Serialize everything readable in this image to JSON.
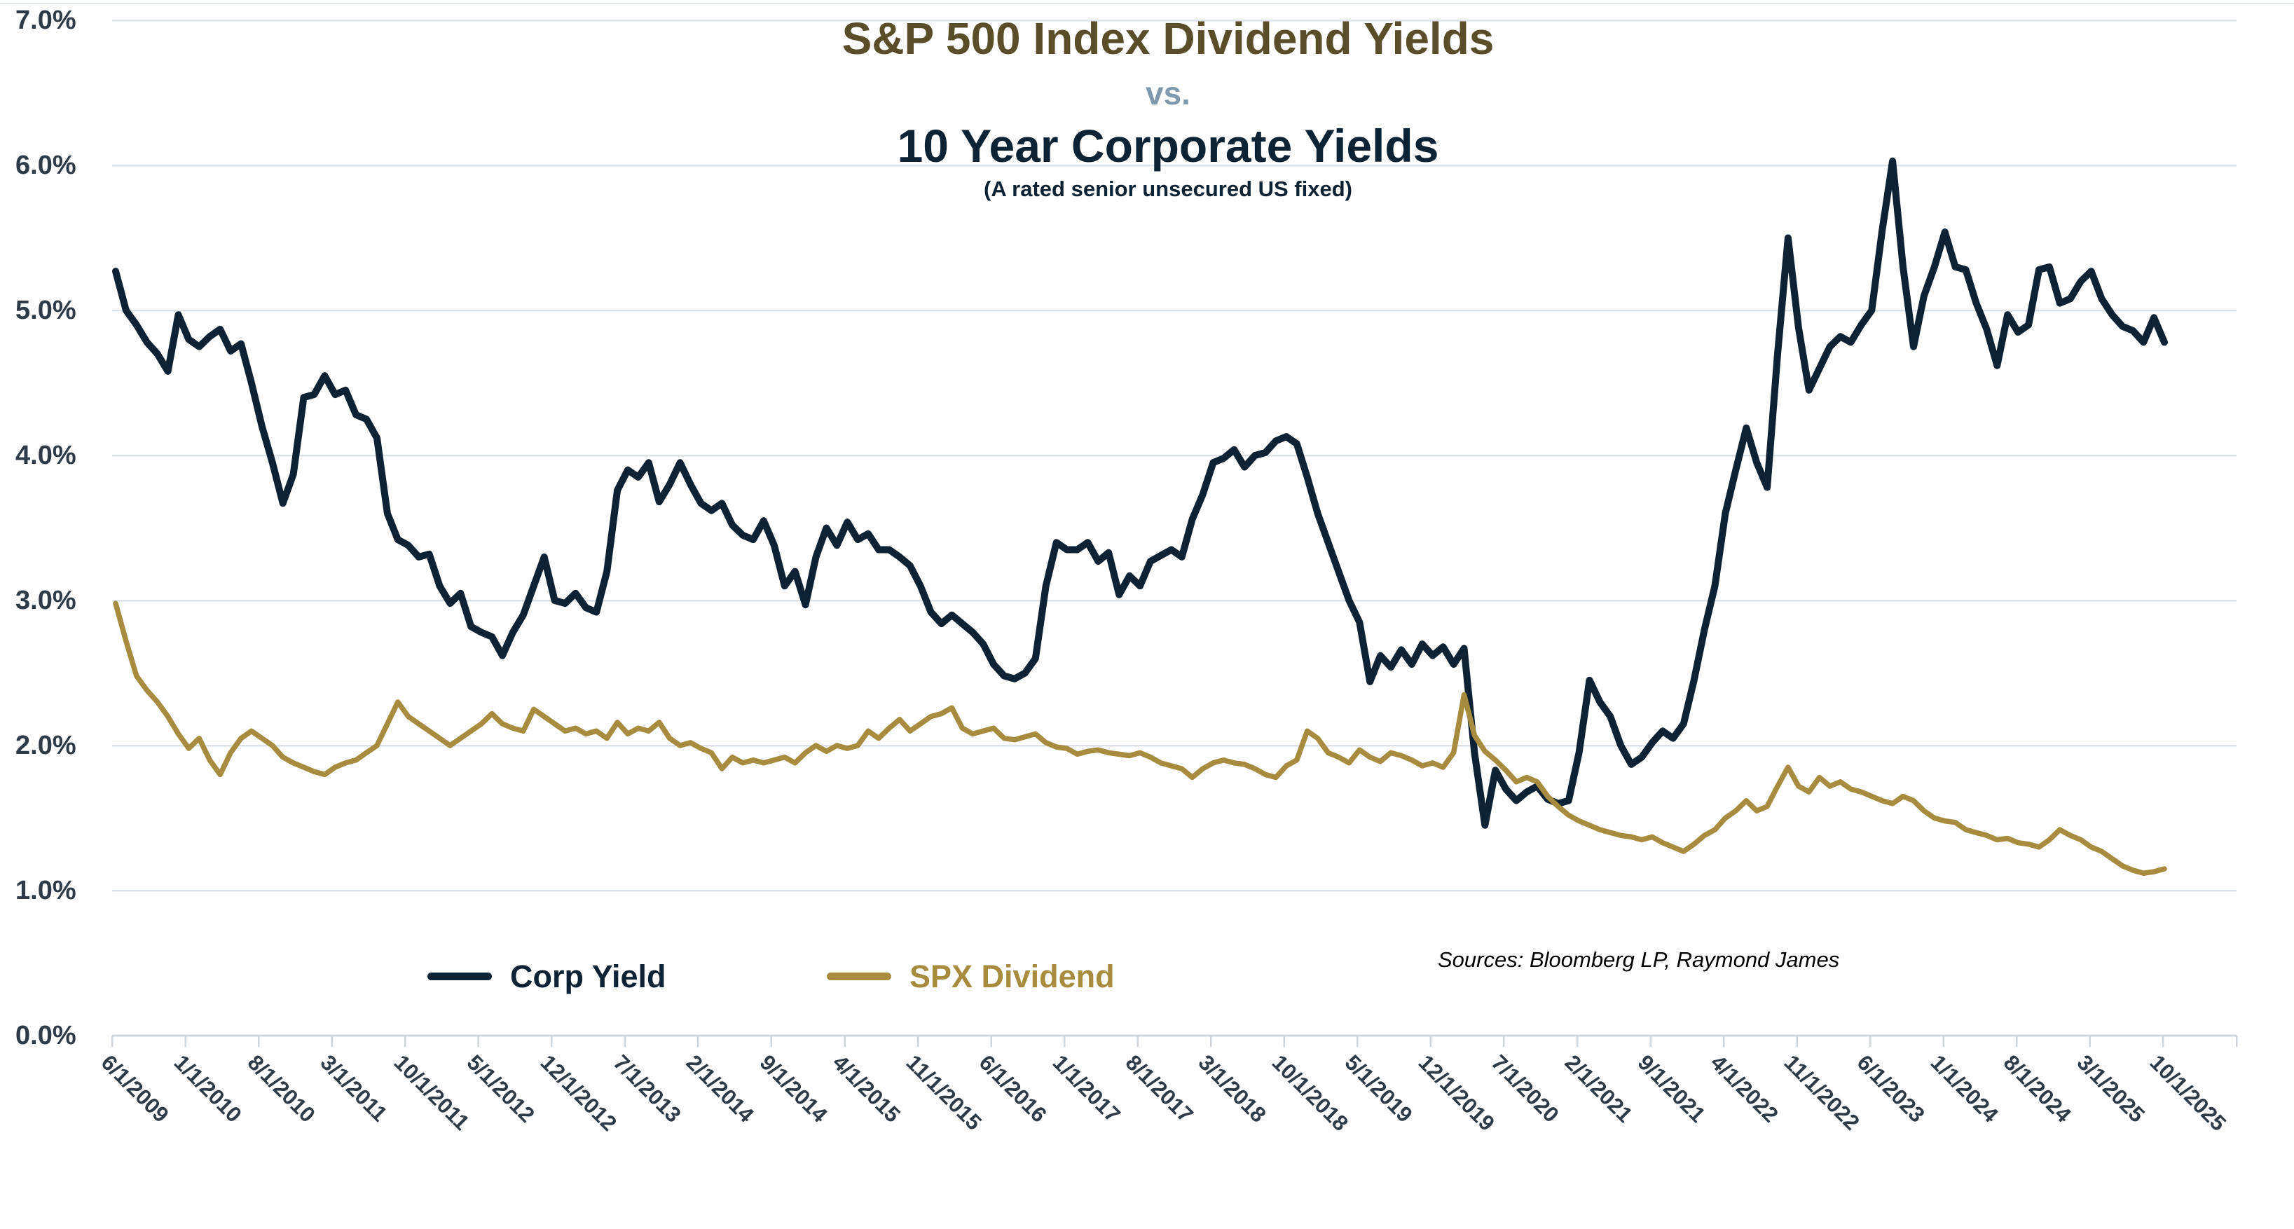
{
  "title": {
    "line1": "S&P 500 Index Dividend Yields",
    "vs": "vs.",
    "line2": "10 Year Corporate Yields",
    "subtitle": "(A rated senior unsecured US fixed)"
  },
  "source_note": "Sources: Bloomberg LP, Raymond James",
  "colors": {
    "title_line1": "#5a4e2a",
    "vs_label": "#7e99ad",
    "title_line2": "#0c2336",
    "corp_yield": "#0e2235",
    "spx_dividend": "#a78c3f",
    "axis_text": "#2e3b47",
    "gridline": "#dde3e9",
    "axis_line": "#cfd7dd"
  },
  "legend": [
    {
      "label": "Corp Yield",
      "color": "#0e2235"
    },
    {
      "label": "SPX Dividend",
      "color": "#a78c3f"
    }
  ],
  "chart_data": {
    "type": "line",
    "title": "S&P 500 Index Dividend Yields vs. 10 Year Corporate Yields (A rated senior unsecured US fixed)",
    "xlabel": "",
    "ylabel": "",
    "ylim": [
      0,
      7
    ],
    "y_tick_labels": [
      "0.0%",
      "1.0%",
      "2.0%",
      "3.0%",
      "4.0%",
      "5.0%",
      "6.0%",
      "7.0%"
    ],
    "grid": "horizontal",
    "legend_position": "bottom",
    "frequency": "monthly",
    "x_start": "6/1/2009",
    "x_end": "10/1/2025",
    "x_tick_labels": [
      "6/1/2009",
      "1/1/2010",
      "8/1/2010",
      "3/1/2011",
      "10/1/2011",
      "5/1/2012",
      "12/1/2012",
      "7/1/2013",
      "2/1/2014",
      "9/1/2014",
      "4/1/2015",
      "11/1/2015",
      "6/1/2016",
      "1/1/2017",
      "8/1/2017",
      "3/1/2018",
      "10/1/2018",
      "5/1/2019",
      "12/1/2019",
      "7/1/2020",
      "2/1/2021",
      "9/1/2021",
      "4/1/2022",
      "11/1/2022",
      "6/1/2023",
      "1/1/2024",
      "8/1/2024",
      "3/1/2025",
      "10/1/2025"
    ],
    "x_tick_interval_months": 7,
    "series": [
      {
        "name": "Corp Yield",
        "color": "#0e2235",
        "unit": "%",
        "values": [
          5.27,
          5.0,
          4.9,
          4.78,
          4.7,
          4.58,
          4.97,
          4.8,
          4.75,
          4.82,
          4.87,
          4.72,
          4.77,
          4.5,
          4.2,
          3.95,
          3.67,
          3.87,
          4.4,
          4.42,
          4.55,
          4.42,
          4.45,
          4.28,
          4.25,
          4.12,
          3.6,
          3.42,
          3.38,
          3.3,
          3.32,
          3.1,
          2.98,
          3.05,
          2.82,
          2.78,
          2.75,
          2.62,
          2.78,
          2.9,
          3.1,
          3.3,
          3.0,
          2.98,
          3.05,
          2.95,
          2.92,
          3.2,
          3.76,
          3.9,
          3.85,
          3.95,
          3.68,
          3.8,
          3.95,
          3.8,
          3.67,
          3.62,
          3.67,
          3.52,
          3.45,
          3.42,
          3.55,
          3.38,
          3.1,
          3.2,
          2.97,
          3.3,
          3.5,
          3.38,
          3.54,
          3.42,
          3.46,
          3.35,
          3.35,
          3.3,
          3.24,
          3.1,
          2.92,
          2.84,
          2.9,
          2.84,
          2.78,
          2.7,
          2.56,
          2.48,
          2.46,
          2.5,
          2.6,
          3.1,
          3.4,
          3.35,
          3.35,
          3.4,
          3.27,
          3.33,
          3.04,
          3.17,
          3.1,
          3.27,
          3.31,
          3.35,
          3.3,
          3.56,
          3.73,
          3.95,
          3.98,
          4.04,
          3.92,
          4.0,
          4.02,
          4.1,
          4.13,
          4.08,
          3.85,
          3.6,
          3.4,
          3.2,
          3.0,
          2.85,
          2.44,
          2.62,
          2.54,
          2.66,
          2.56,
          2.7,
          2.62,
          2.68,
          2.56,
          2.67,
          1.95,
          1.45,
          1.83,
          1.7,
          1.62,
          1.68,
          1.72,
          1.63,
          1.6,
          1.62,
          1.95,
          2.45,
          2.3,
          2.2,
          2.0,
          1.87,
          1.92,
          2.02,
          2.1,
          2.05,
          2.15,
          2.45,
          2.8,
          3.1,
          3.6,
          3.9,
          4.19,
          3.95,
          3.78,
          4.7,
          5.5,
          4.88,
          4.45,
          4.6,
          4.75,
          4.82,
          4.78,
          4.9,
          5.0,
          5.55,
          6.03,
          5.3,
          4.75,
          5.1,
          5.3,
          5.54,
          5.3,
          5.28,
          5.05,
          4.87,
          4.62,
          4.97,
          4.85,
          4.9,
          5.28,
          5.3,
          5.05,
          5.08,
          5.2,
          5.27,
          5.08,
          4.97,
          4.89,
          4.86,
          4.78,
          4.95,
          4.78
        ]
      },
      {
        "name": "SPX Dividend",
        "color": "#a78c3f",
        "unit": "%",
        "values": [
          2.98,
          2.72,
          2.48,
          2.38,
          2.3,
          2.2,
          2.08,
          1.98,
          2.05,
          1.9,
          1.8,
          1.95,
          2.05,
          2.1,
          2.05,
          2.0,
          1.92,
          1.88,
          1.85,
          1.82,
          1.8,
          1.85,
          1.88,
          1.9,
          1.95,
          2.0,
          2.15,
          2.3,
          2.2,
          2.15,
          2.1,
          2.05,
          2.0,
          2.05,
          2.1,
          2.15,
          2.22,
          2.15,
          2.12,
          2.1,
          2.25,
          2.2,
          2.15,
          2.1,
          2.12,
          2.08,
          2.1,
          2.05,
          2.16,
          2.08,
          2.12,
          2.1,
          2.16,
          2.05,
          2.0,
          2.02,
          1.98,
          1.95,
          1.84,
          1.92,
          1.88,
          1.9,
          1.88,
          1.9,
          1.92,
          1.88,
          1.95,
          2.0,
          1.96,
          2.0,
          1.98,
          2.0,
          2.1,
          2.05,
          2.12,
          2.18,
          2.1,
          2.15,
          2.2,
          2.22,
          2.26,
          2.12,
          2.08,
          2.1,
          2.12,
          2.05,
          2.04,
          2.06,
          2.08,
          2.02,
          1.99,
          1.98,
          1.94,
          1.96,
          1.97,
          1.95,
          1.94,
          1.93,
          1.95,
          1.92,
          1.88,
          1.86,
          1.84,
          1.78,
          1.84,
          1.88,
          1.9,
          1.88,
          1.87,
          1.84,
          1.8,
          1.78,
          1.86,
          1.9,
          2.1,
          2.05,
          1.95,
          1.92,
          1.88,
          1.97,
          1.92,
          1.89,
          1.95,
          1.93,
          1.9,
          1.86,
          1.88,
          1.85,
          1.95,
          2.35,
          2.07,
          1.96,
          1.9,
          1.83,
          1.75,
          1.78,
          1.75,
          1.65,
          1.58,
          1.52,
          1.48,
          1.45,
          1.42,
          1.4,
          1.38,
          1.37,
          1.35,
          1.37,
          1.33,
          1.3,
          1.27,
          1.32,
          1.38,
          1.42,
          1.5,
          1.55,
          1.62,
          1.55,
          1.58,
          1.72,
          1.85,
          1.72,
          1.68,
          1.78,
          1.72,
          1.75,
          1.7,
          1.68,
          1.65,
          1.62,
          1.6,
          1.65,
          1.62,
          1.55,
          1.5,
          1.48,
          1.47,
          1.42,
          1.4,
          1.38,
          1.35,
          1.36,
          1.33,
          1.32,
          1.3,
          1.35,
          1.42,
          1.38,
          1.35,
          1.3,
          1.27,
          1.22,
          1.17,
          1.14,
          1.12,
          1.13,
          1.15
        ]
      }
    ]
  }
}
